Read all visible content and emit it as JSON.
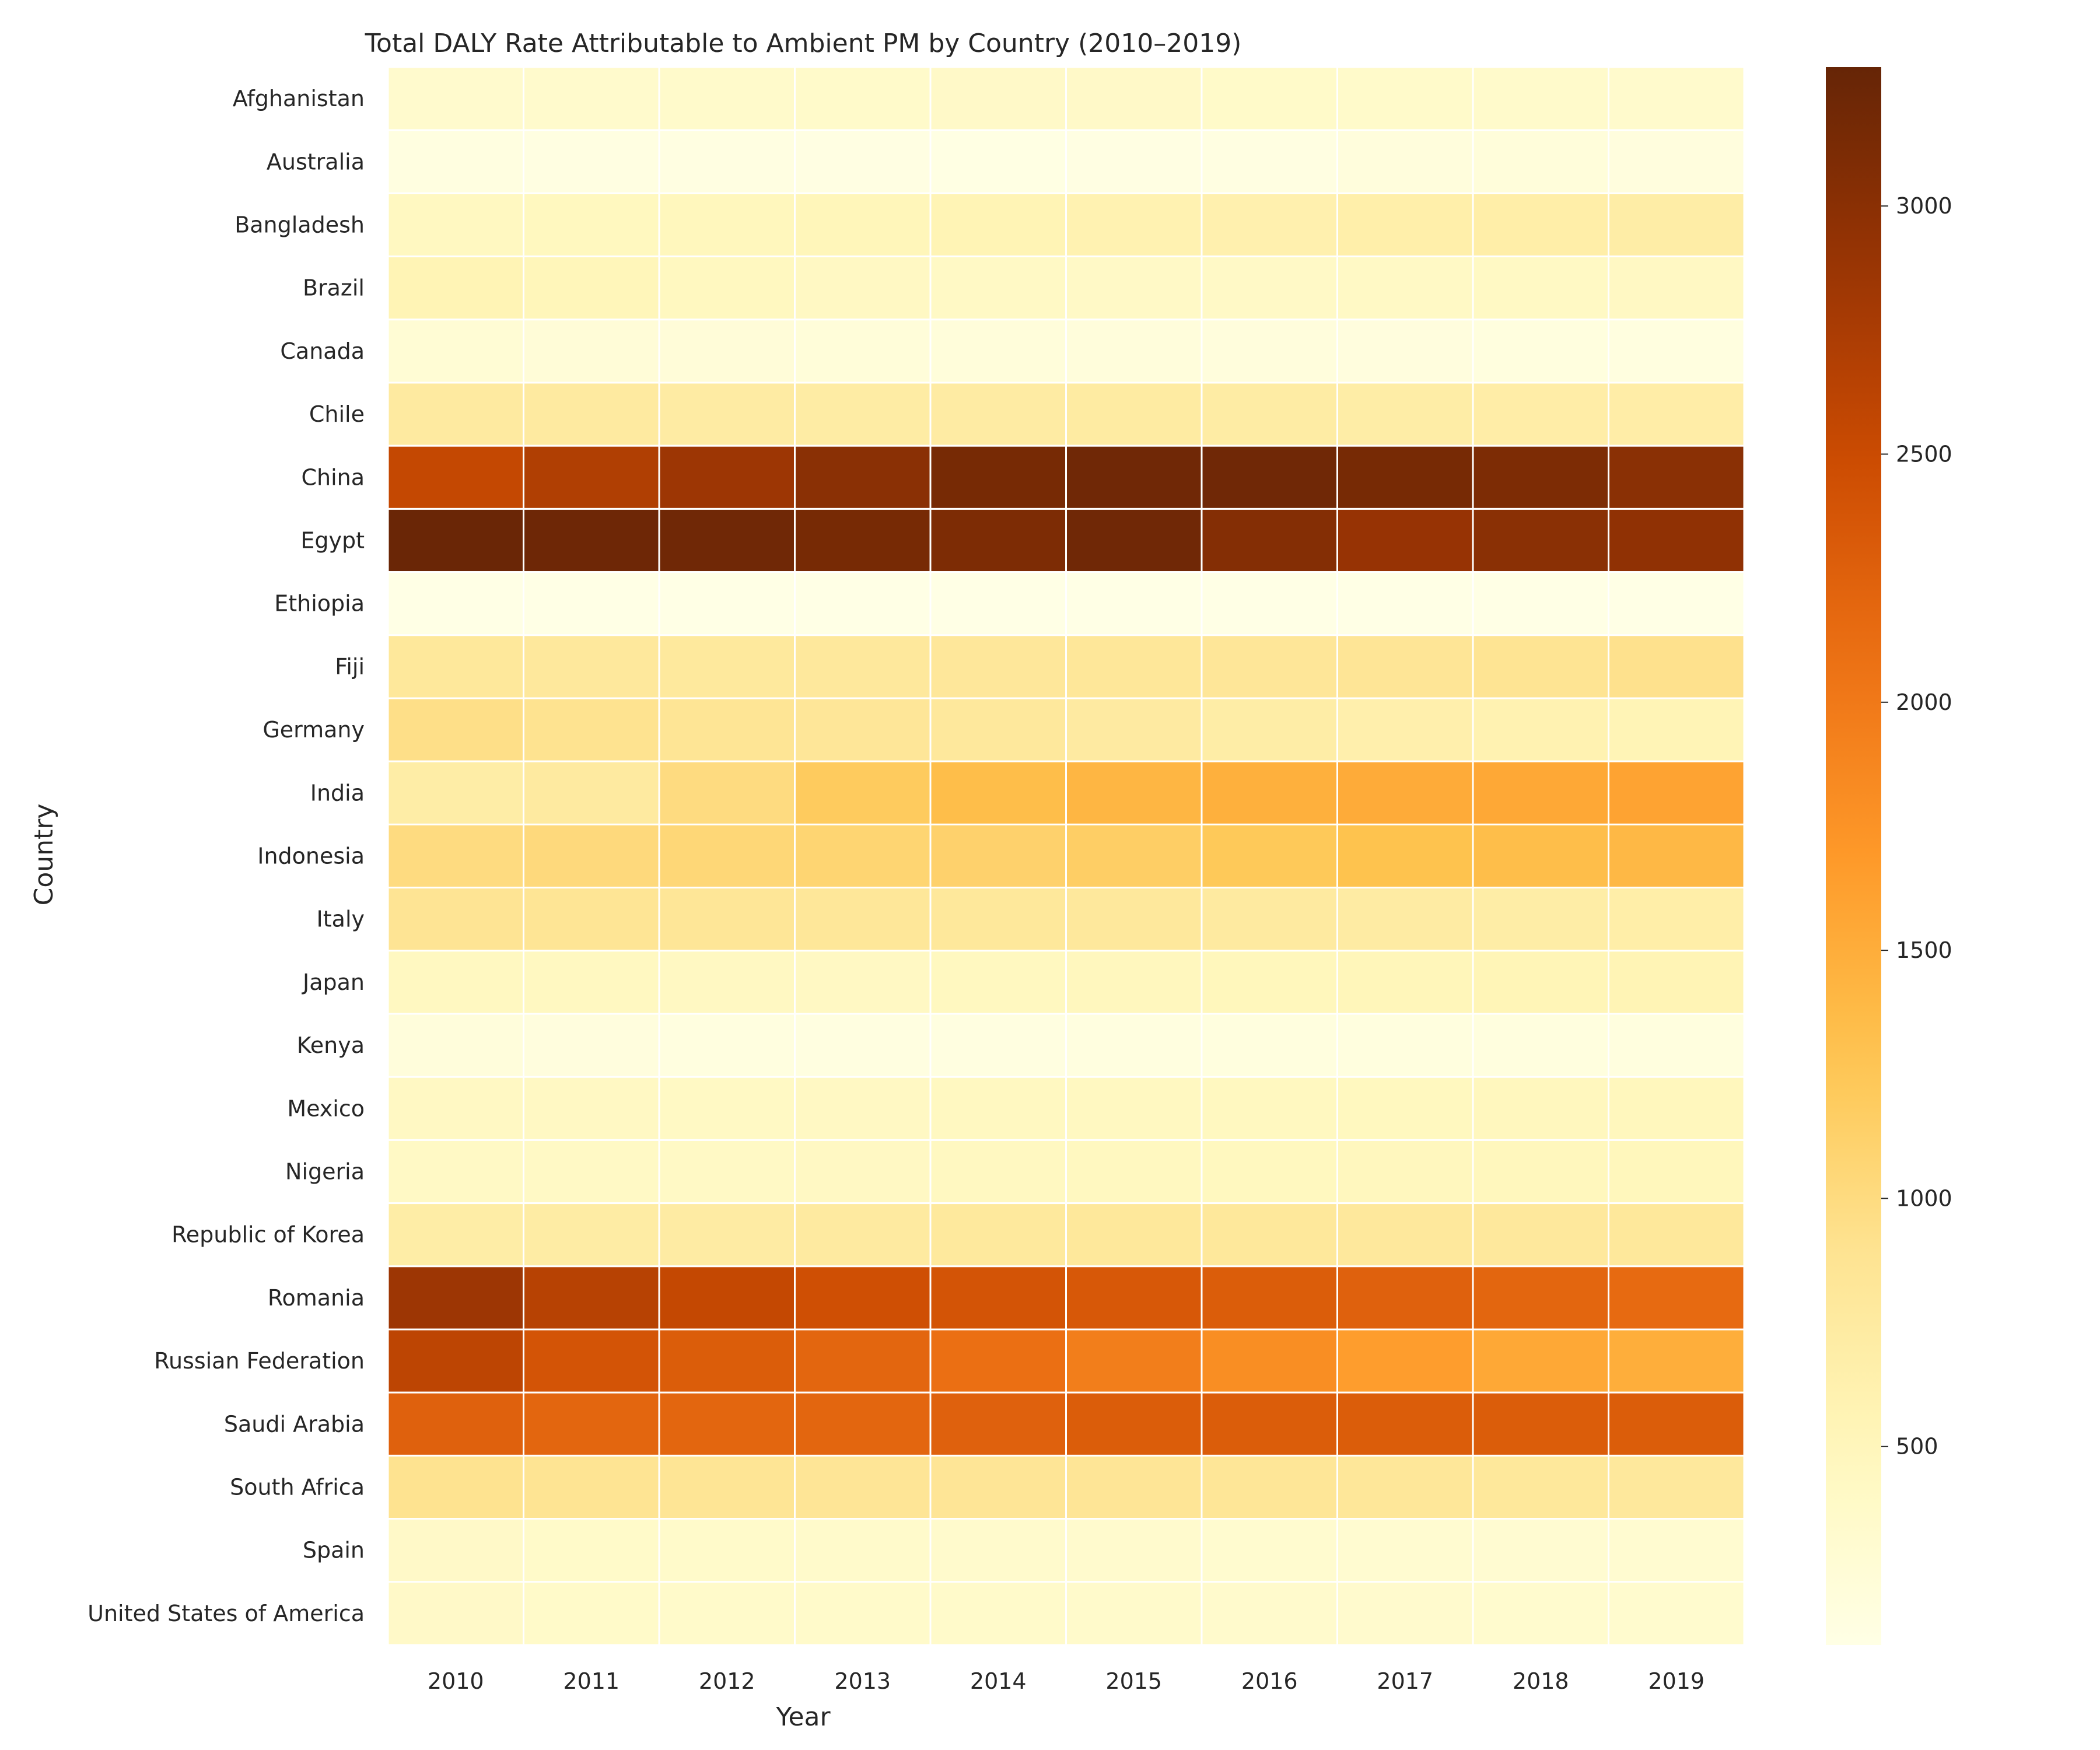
{
  "chart_data": {
    "type": "heatmap",
    "title": "Total DALY Rate Attributable to Ambient PM by Country (2010–2019)",
    "xlabel": "Year",
    "ylabel": "Country",
    "x": [
      "2010",
      "2011",
      "2012",
      "2013",
      "2014",
      "2015",
      "2016",
      "2017",
      "2018",
      "2019"
    ],
    "y": [
      "Afghanistan",
      "Australia",
      "Bangladesh",
      "Brazil",
      "Canada",
      "Chile",
      "China",
      "Egypt",
      "Ethiopia",
      "Fiji",
      "Germany",
      "India",
      "Indonesia",
      "Italy",
      "Japan",
      "Kenya",
      "Mexico",
      "Nigeria",
      "Republic of Korea",
      "Romania",
      "Russian Federation",
      "Saudi Arabia",
      "South Africa",
      "Spain",
      "United States of America"
    ],
    "values": [
      [
        330,
        340,
        350,
        360,
        380,
        380,
        370,
        360,
        350,
        340
      ],
      [
        150,
        140,
        140,
        130,
        120,
        130,
        140,
        190,
        210,
        180
      ],
      [
        450,
        470,
        490,
        520,
        560,
        600,
        630,
        660,
        680,
        700
      ],
      [
        560,
        520,
        460,
        430,
        410,
        400,
        400,
        410,
        420,
        430
      ],
      [
        260,
        240,
        230,
        220,
        210,
        200,
        190,
        180,
        170,
        160
      ],
      [
        760,
        760,
        730,
        720,
        730,
        740,
        720,
        700,
        690,
        690
      ],
      [
        2550,
        2700,
        2850,
        3000,
        3150,
        3200,
        3200,
        3150,
        3100,
        3000
      ],
      [
        3250,
        3220,
        3200,
        3150,
        3100,
        3200,
        3050,
        2900,
        3000,
        2950
      ],
      [
        100,
        100,
        100,
        100,
        100,
        100,
        100,
        100,
        100,
        100
      ],
      [
        800,
        790,
        780,
        790,
        810,
        820,
        830,
        850,
        880,
        920
      ],
      [
        950,
        900,
        860,
        830,
        790,
        750,
        700,
        650,
        600,
        550
      ],
      [
        700,
        760,
        1000,
        1200,
        1350,
        1420,
        1480,
        1520,
        1550,
        1600
      ],
      [
        1000,
        1020,
        1050,
        1080,
        1120,
        1160,
        1230,
        1300,
        1350,
        1400
      ],
      [
        870,
        860,
        840,
        820,
        800,
        790,
        760,
        730,
        700,
        680
      ],
      [
        450,
        450,
        440,
        430,
        460,
        480,
        500,
        520,
        540,
        560
      ],
      [
        200,
        180,
        160,
        150,
        150,
        160,
        170,
        170,
        170,
        170
      ],
      [
        430,
        430,
        420,
        430,
        450,
        450,
        460,
        470,
        480,
        490
      ],
      [
        410,
        410,
        410,
        430,
        450,
        460,
        470,
        480,
        490,
        500
      ],
      [
        700,
        720,
        730,
        760,
        780,
        800,
        800,
        790,
        790,
        800
      ],
      [
        2850,
        2650,
        2550,
        2450,
        2400,
        2350,
        2300,
        2250,
        2200,
        2150
      ],
      [
        2600,
        2400,
        2300,
        2200,
        2100,
        1950,
        1800,
        1650,
        1550,
        1500
      ],
      [
        2250,
        2200,
        2200,
        2200,
        2250,
        2300,
        2300,
        2300,
        2300,
        2300
      ],
      [
        900,
        880,
        860,
        850,
        850,
        850,
        840,
        820,
        800,
        790
      ],
      [
        380,
        370,
        360,
        350,
        340,
        330,
        310,
        300,
        290,
        300
      ],
      [
        380,
        370,
        360,
        360,
        360,
        350,
        340,
        330,
        320,
        320
      ]
    ],
    "colorbar": {
      "vmin": 100,
      "vmax": 3280,
      "ticks": [
        500,
        1000,
        1500,
        2000,
        2500,
        3000
      ]
    },
    "colormap": "YlOrBr",
    "cell_border_color": "#ffffff"
  }
}
